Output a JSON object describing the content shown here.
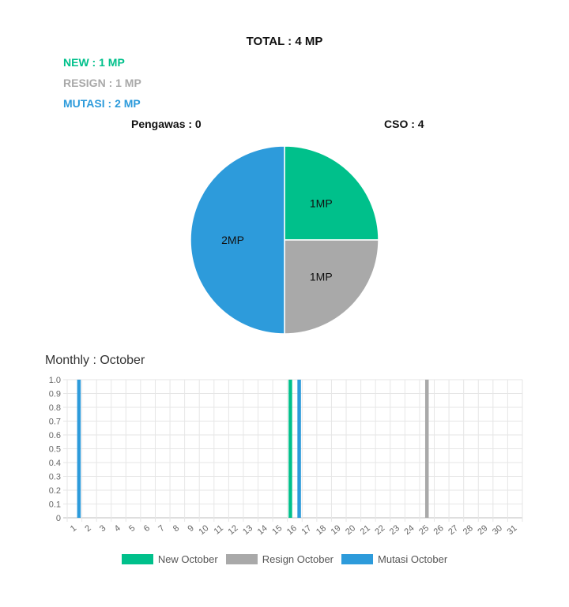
{
  "summary": {
    "total": "TOTAL : 4 MP",
    "new": "NEW : 1 MP",
    "resign": "RESIGN : 1 MP",
    "mutasi": "MUTASI : 2 MP",
    "pengawas": "Pengawas : 0",
    "cso": "CSO : 4"
  },
  "colors": {
    "new": "#00c08b",
    "resign": "#a9a9a9",
    "mutasi": "#2d9bdb"
  },
  "monthly_title": "Monthly : October",
  "chart_data": [
    {
      "type": "pie",
      "slices": [
        {
          "key": "new",
          "value": 1,
          "label": "1MP"
        },
        {
          "key": "resign",
          "value": 1,
          "label": "1MP"
        },
        {
          "key": "mutasi",
          "value": 2,
          "label": "2MP"
        }
      ]
    },
    {
      "type": "bar",
      "title": "Monthly : October",
      "categories": [
        "1",
        "2",
        "3",
        "4",
        "5",
        "6",
        "7",
        "8",
        "9",
        "10",
        "11",
        "12",
        "13",
        "14",
        "15",
        "16",
        "17",
        "18",
        "19",
        "20",
        "21",
        "22",
        "23",
        "24",
        "25",
        "26",
        "27",
        "28",
        "29",
        "30",
        "31"
      ],
      "yticks": [
        "0",
        "0.1",
        "0.2",
        "0.3",
        "0.4",
        "0.5",
        "0.6",
        "0.7",
        "0.8",
        "0.9",
        "1.0"
      ],
      "ylim": [
        0,
        1
      ],
      "series": [
        {
          "name": "New October",
          "key": "new",
          "values": [
            0,
            0,
            0,
            0,
            0,
            0,
            0,
            0,
            0,
            0,
            0,
            0,
            0,
            0,
            0,
            1,
            0,
            0,
            0,
            0,
            0,
            0,
            0,
            0,
            0,
            0,
            0,
            0,
            0,
            0,
            0
          ]
        },
        {
          "name": "Resign October",
          "key": "resign",
          "values": [
            0,
            0,
            0,
            0,
            0,
            0,
            0,
            0,
            0,
            0,
            0,
            0,
            0,
            0,
            0,
            0,
            0,
            0,
            0,
            0,
            0,
            0,
            0,
            0,
            1,
            0,
            0,
            0,
            0,
            0,
            0
          ]
        },
        {
          "name": "Mutasi October",
          "key": "mutasi",
          "values": [
            1,
            0,
            0,
            0,
            0,
            0,
            0,
            0,
            0,
            0,
            0,
            0,
            0,
            0,
            0,
            1,
            0,
            0,
            0,
            0,
            0,
            0,
            0,
            0,
            0,
            0,
            0,
            0,
            0,
            0,
            0
          ]
        }
      ],
      "grid": true,
      "legend": "bottom"
    }
  ]
}
